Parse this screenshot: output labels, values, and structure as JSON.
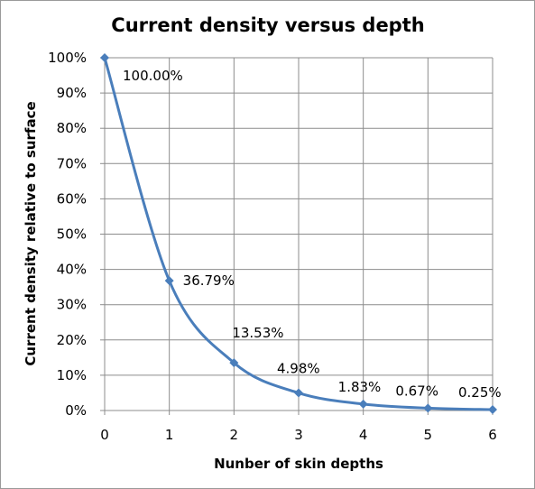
{
  "chart_data": {
    "type": "line",
    "title": "Current density versus depth",
    "xlabel": "Nunber of skin depths",
    "ylabel": "Current  density relative to surface",
    "x": [
      0,
      1,
      2,
      3,
      4,
      5,
      6
    ],
    "xticks": [
      "0",
      "1",
      "2",
      "3",
      "4",
      "5",
      "6"
    ],
    "xlim": [
      0,
      6
    ],
    "ylim": [
      0,
      100
    ],
    "yticks": [
      "0%",
      "10%",
      "20%",
      "30%",
      "40%",
      "50%",
      "60%",
      "70%",
      "80%",
      "90%",
      "100%"
    ],
    "grid": true,
    "smooth": true,
    "series": [
      {
        "values": [
          100.0,
          36.79,
          13.53,
          4.98,
          1.83,
          0.67,
          0.25
        ],
        "labels": [
          "100.00%",
          "36.79%",
          "13.53%",
          "4.98%",
          "1.83%",
          "0.67%",
          "0.25%"
        ],
        "color": "#4a7ebb"
      }
    ]
  }
}
